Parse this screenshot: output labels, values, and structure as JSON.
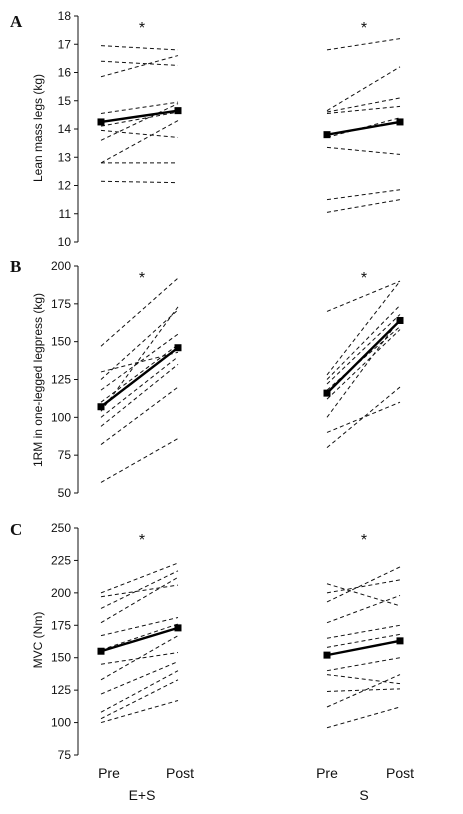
{
  "x_labels": {
    "pre": "Pre",
    "post": "Post"
  },
  "groups": [
    "E+S",
    "S"
  ],
  "chart_data": [
    {
      "type": "line",
      "panel": "A",
      "ylabel": "Lean mass legs (kg)",
      "ylim": [
        10,
        18
      ],
      "yticks": [
        10,
        11,
        12,
        13,
        14,
        15,
        16,
        17,
        18
      ],
      "x": [
        "Pre",
        "Post"
      ],
      "significance_marker": "*",
      "groups": [
        {
          "name": "E+S",
          "individuals": [
            [
              16.95,
              16.8
            ],
            [
              16.4,
              16.25
            ],
            [
              15.85,
              16.6
            ],
            [
              14.55,
              14.95
            ],
            [
              14.1,
              14.6
            ],
            [
              13.95,
              13.7
            ],
            [
              13.6,
              14.9
            ],
            [
              12.8,
              14.3
            ],
            [
              12.8,
              12.8
            ],
            [
              12.15,
              12.1
            ]
          ],
          "mean": [
            14.25,
            14.65
          ]
        },
        {
          "name": "S",
          "individuals": [
            [
              16.8,
              17.2
            ],
            [
              14.65,
              16.2
            ],
            [
              14.6,
              15.1
            ],
            [
              14.55,
              14.8
            ],
            [
              13.7,
              14.4
            ],
            [
              13.35,
              13.1
            ],
            [
              11.5,
              11.85
            ],
            [
              11.05,
              11.5
            ]
          ],
          "mean": [
            13.8,
            14.25
          ]
        }
      ]
    },
    {
      "type": "line",
      "panel": "B",
      "ylabel": "1RM in one-legged legpress (kg)",
      "ylim": [
        50,
        200
      ],
      "yticks": [
        50,
        75,
        100,
        125,
        150,
        175,
        200
      ],
      "x": [
        "Pre",
        "Post"
      ],
      "significance_marker": "*",
      "groups": [
        {
          "name": "E+S",
          "individuals": [
            [
              147,
              192
            ],
            [
              130,
              143
            ],
            [
              125,
              171
            ],
            [
              118,
              155
            ],
            [
              110,
              148
            ],
            [
              104,
              173
            ],
            [
              100,
              140
            ],
            [
              94,
              135
            ],
            [
              82,
              120
            ],
            [
              57,
              86
            ]
          ],
          "mean": [
            107,
            146
          ]
        },
        {
          "name": "S",
          "individuals": [
            [
              170,
              190
            ],
            [
              128,
              190
            ],
            [
              125,
              174
            ],
            [
              122,
              168
            ],
            [
              118,
              160
            ],
            [
              112,
              158
            ],
            [
              100,
              165
            ],
            [
              90,
              110
            ],
            [
              80,
              120
            ]
          ],
          "mean": [
            116,
            164
          ]
        }
      ]
    },
    {
      "type": "line",
      "panel": "C",
      "ylabel": "MVC (Nm)",
      "ylim": [
        75,
        250
      ],
      "yticks": [
        75,
        100,
        125,
        150,
        175,
        200,
        225,
        250
      ],
      "x": [
        "Pre",
        "Post"
      ],
      "significance_marker": "*",
      "groups": [
        {
          "name": "E+S",
          "individuals": [
            [
              200,
              223
            ],
            [
              197,
              206
            ],
            [
              188,
              217
            ],
            [
              177,
              212
            ],
            [
              167,
              181
            ],
            [
              156,
              176
            ],
            [
              145,
              154
            ],
            [
              133,
              167
            ],
            [
              122,
              147
            ],
            [
              108,
              140
            ],
            [
              103,
              133
            ],
            [
              100,
              117
            ]
          ],
          "mean": [
            155,
            173
          ]
        },
        {
          "name": "S",
          "individuals": [
            [
              207,
              190
            ],
            [
              200,
              210
            ],
            [
              193,
              220
            ],
            [
              177,
              198
            ],
            [
              165,
              175
            ],
            [
              158,
              168
            ],
            [
              140,
              150
            ],
            [
              137,
              130
            ],
            [
              124,
              126
            ],
            [
              112,
              137
            ],
            [
              96,
              112
            ]
          ],
          "mean": [
            152,
            163
          ]
        }
      ]
    }
  ]
}
